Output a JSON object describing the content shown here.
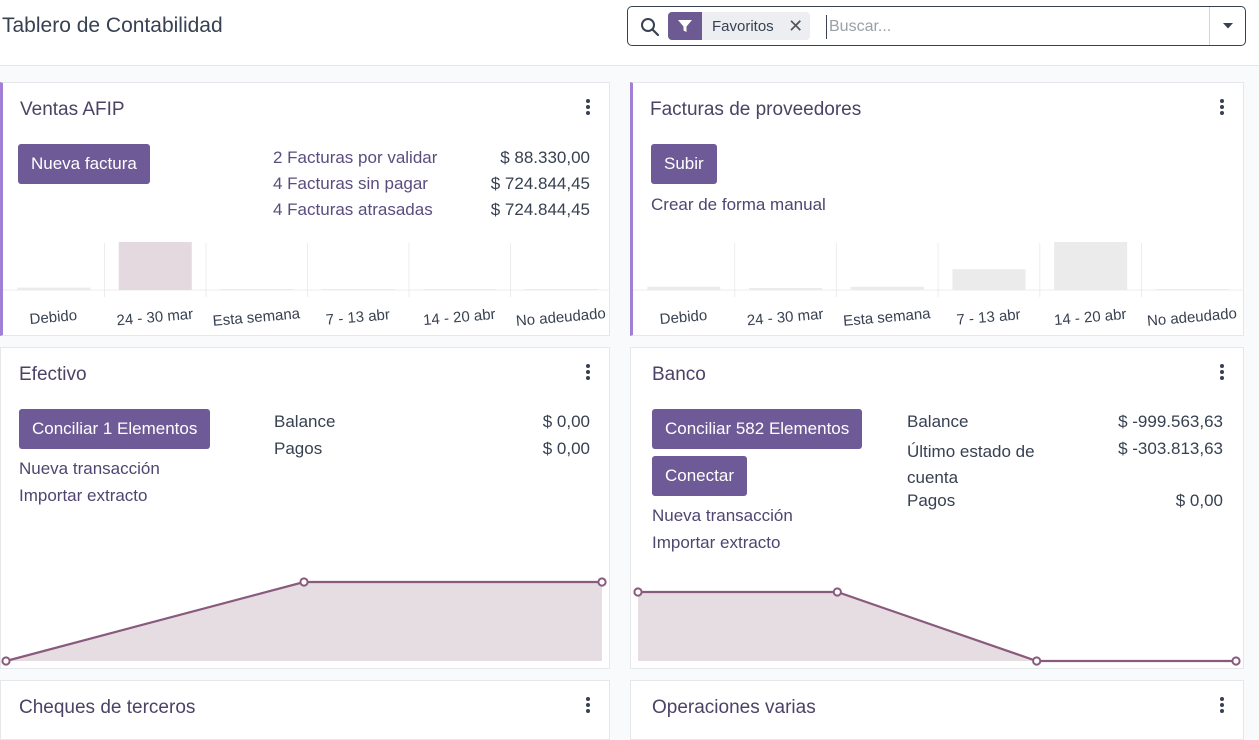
{
  "header": {
    "title": "Tablero de Contabilidad",
    "search": {
      "facet_label": "Favoritos",
      "placeholder": "Buscar..."
    }
  },
  "colors": {
    "accent": "#a17fd6",
    "button": "#6e5a96",
    "line": "#8a5a7d",
    "area": "#e6dde3",
    "bar_highlight": "#e3d9df",
    "bar_neutral": "#ebebeb"
  },
  "cards": {
    "ventas": {
      "title": "Ventas AFIP",
      "button": "Nueva factura",
      "stats": [
        {
          "label": "2 Facturas por validar",
          "value": "$ 88.330,00"
        },
        {
          "label": "4 Facturas sin pagar",
          "value": "$ 724.844,45"
        },
        {
          "label": "4 Facturas atrasadas",
          "value": "$ 724.844,45"
        }
      ]
    },
    "proveedores": {
      "title": "Facturas de proveedores",
      "button": "Subir",
      "link": "Crear de forma manual"
    },
    "efectivo": {
      "title": "Efectivo",
      "button": "Conciliar 1 Elementos",
      "links": [
        "Nueva transacción",
        "Importar extracto"
      ],
      "stats": [
        {
          "label": "Balance",
          "value": "$ 0,00"
        },
        {
          "label": "Pagos",
          "value": "$ 0,00"
        }
      ]
    },
    "banco": {
      "title": "Banco",
      "button": "Conciliar 582 Elementos",
      "button2": "Conectar",
      "links": [
        "Nueva transacción",
        "Importar extracto"
      ],
      "stats": [
        {
          "label": "Balance",
          "value": "$ -999.563,63"
        },
        {
          "label": "Último estado de cuenta",
          "value": "$ -303.813,63"
        },
        {
          "label": "Pagos",
          "value": "$ 0,00"
        }
      ]
    },
    "cheques": {
      "title": "Cheques de terceros"
    },
    "operaciones": {
      "title": "Operaciones varias"
    }
  },
  "chart_data": [
    {
      "type": "bar",
      "categories": [
        "Debido",
        "24 - 30 mar",
        "Esta semana",
        "7 - 13 abr",
        "14 - 20 abr",
        "No adeudado"
      ],
      "values": [
        1,
        20,
        0,
        0,
        0,
        0
      ],
      "highlight": [
        false,
        true,
        false,
        false,
        false,
        false
      ]
    },
    {
      "type": "bar",
      "categories": [
        "Debido",
        "24 - 30 mar",
        "Esta semana",
        "7 - 13 abr",
        "14 - 20 abr",
        "No adeudado"
      ],
      "values": [
        2,
        1,
        2,
        13,
        30,
        0
      ],
      "highlight": [
        false,
        false,
        false,
        false,
        false,
        false
      ]
    },
    {
      "type": "area",
      "values": [
        0,
        1,
        1
      ]
    },
    {
      "type": "area",
      "values": [
        1,
        1,
        0,
        0
      ]
    }
  ]
}
